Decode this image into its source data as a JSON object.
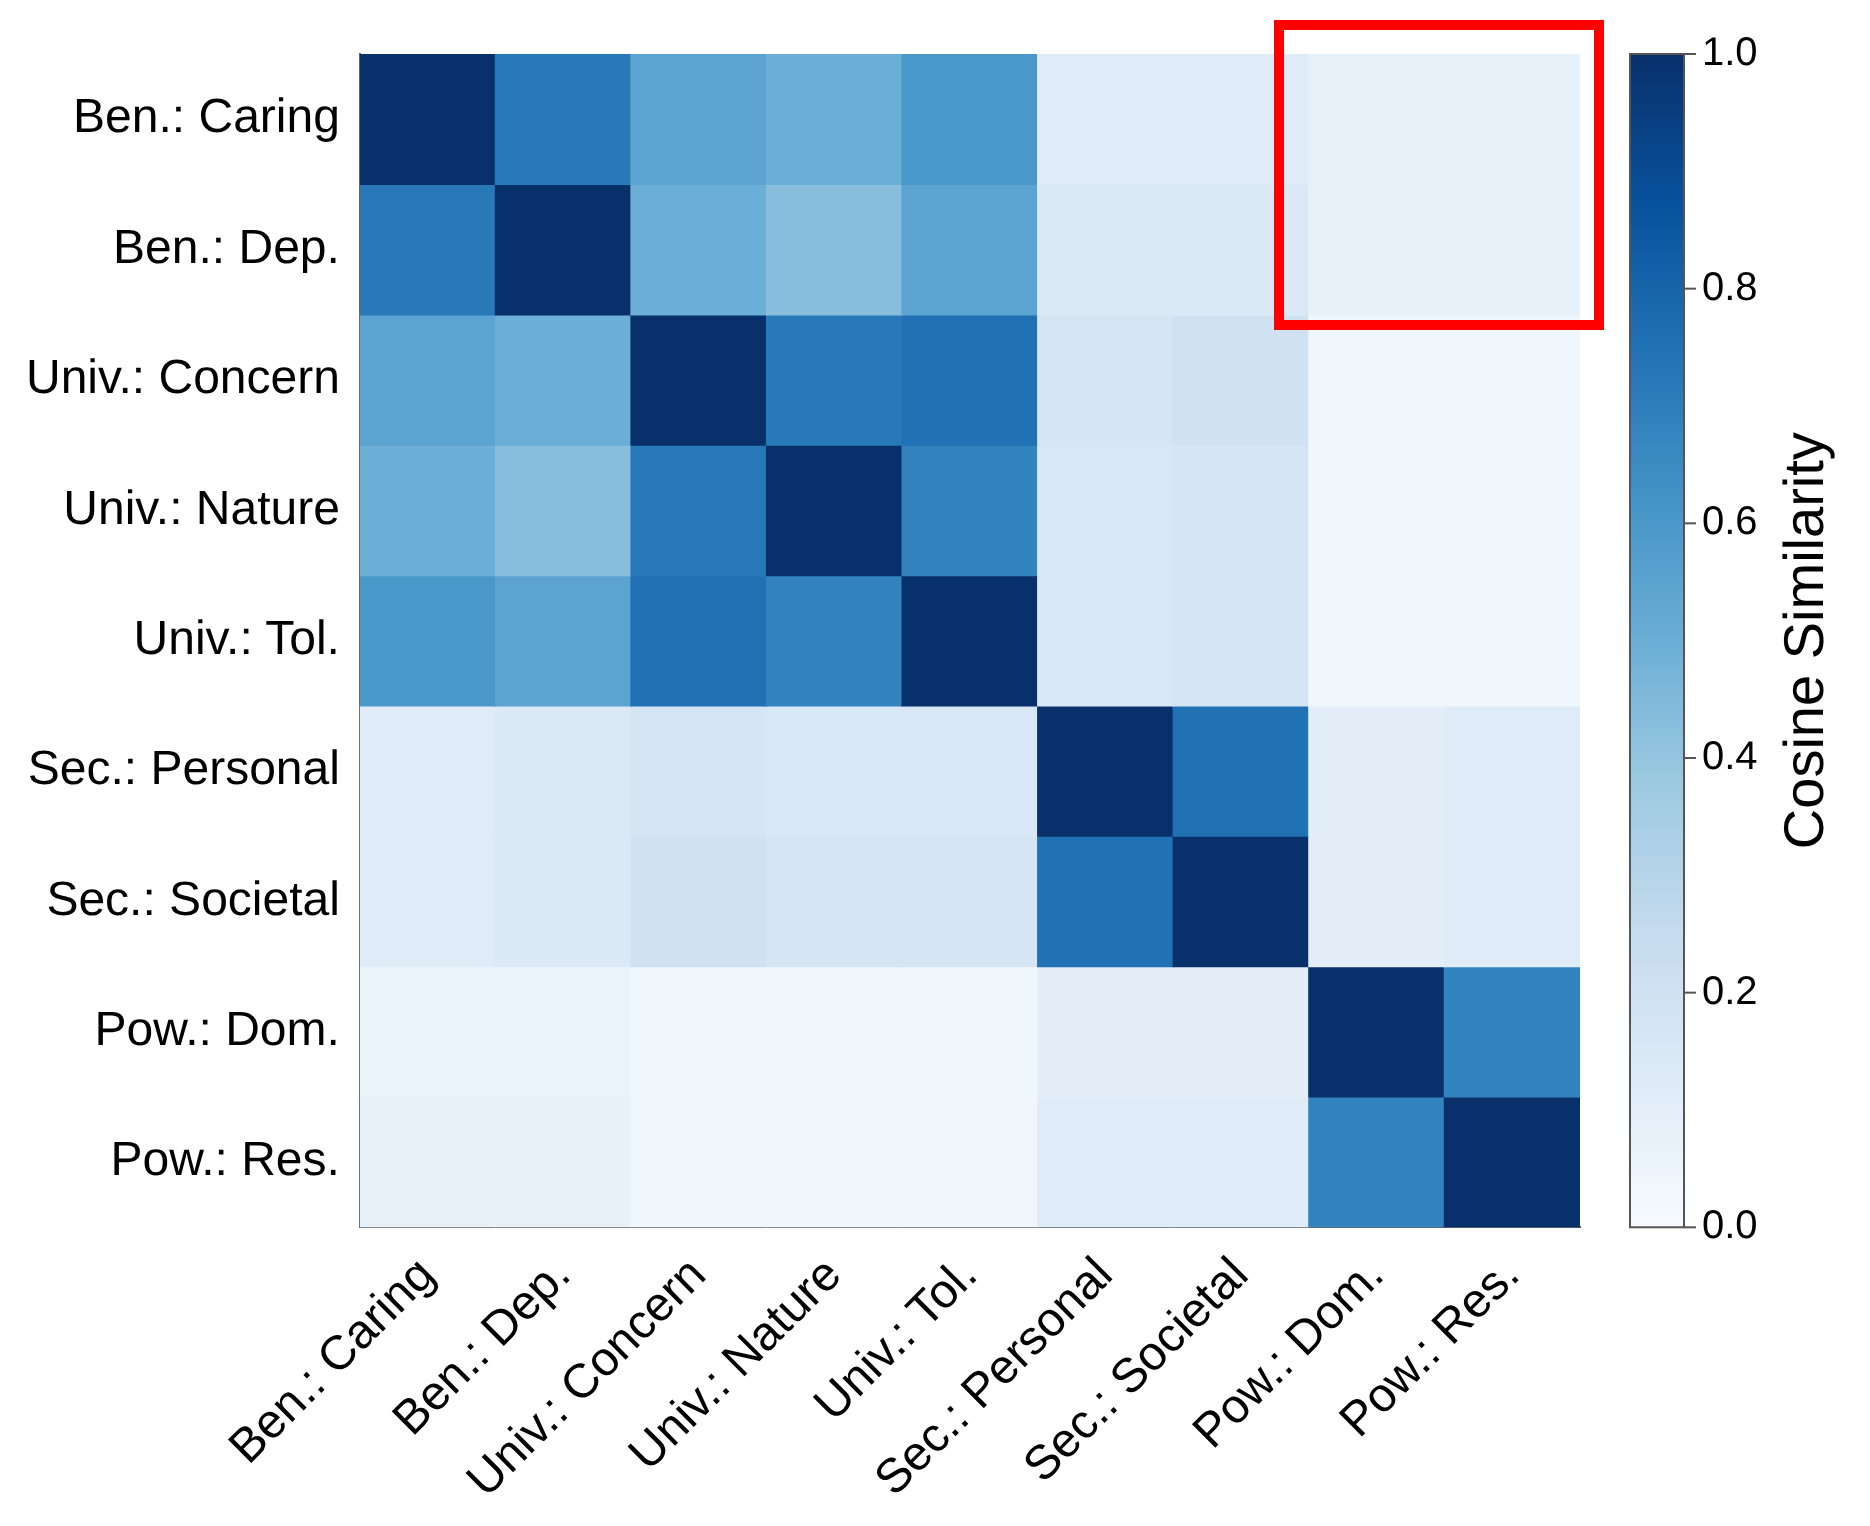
{
  "chart_data": {
    "type": "heatmap",
    "clabel": "Cosine Similarity",
    "categories": [
      "Ben.: Caring",
      "Ben.: Dep.",
      "Univ.: Concern",
      "Univ.: Nature",
      "Univ.: Tol.",
      "Sec.: Personal",
      "Sec.: Societal",
      "Pow.: Dom.",
      "Pow.: Res."
    ],
    "y_categories": [
      "Ben.: Caring",
      "Ben.: Dep.",
      "Univ.: Concern",
      "Univ.: Nature",
      "Univ.: Tol.",
      "Sec.: Personal",
      "Sec.: Societal",
      "Pow.: Dom.",
      "Pow.: Res."
    ],
    "cells": [
      [
        1,
        0.72,
        0.55,
        0.5,
        0.6,
        0.12,
        0.12,
        0.08,
        0.08
      ],
      [
        0.72,
        1,
        0.5,
        0.43,
        0.55,
        0.14,
        0.14,
        0.08,
        0.08
      ],
      [
        0.55,
        0.5,
        1,
        0.72,
        0.75,
        0.17,
        0.2,
        0.04,
        0.04
      ],
      [
        0.5,
        0.43,
        0.72,
        1,
        0.68,
        0.16,
        0.17,
        0.04,
        0.04
      ],
      [
        0.6,
        0.55,
        0.75,
        0.68,
        1,
        0.16,
        0.17,
        0.04,
        0.04
      ],
      [
        0.12,
        0.14,
        0.17,
        0.16,
        0.16,
        1,
        0.75,
        0.1,
        0.12
      ],
      [
        0.12,
        0.14,
        0.2,
        0.17,
        0.17,
        0.75,
        1,
        0.1,
        0.12
      ],
      [
        0.06,
        0.06,
        0.04,
        0.04,
        0.04,
        0.1,
        0.1,
        1,
        0.68
      ],
      [
        0.08,
        0.08,
        0.04,
        0.04,
        0.04,
        0.12,
        0.12,
        0.68,
        1
      ]
    ],
    "clim": [
      0,
      1
    ],
    "cticks": [
      {
        "value": 0,
        "label": "0.0"
      },
      {
        "value": 0.2,
        "label": "0.2"
      },
      {
        "value": 0.4,
        "label": "0.4"
      },
      {
        "value": 0.6,
        "label": "0.6"
      },
      {
        "value": 0.8,
        "label": "0.8"
      },
      {
        "value": 1,
        "label": "1.0"
      }
    ]
  }
}
